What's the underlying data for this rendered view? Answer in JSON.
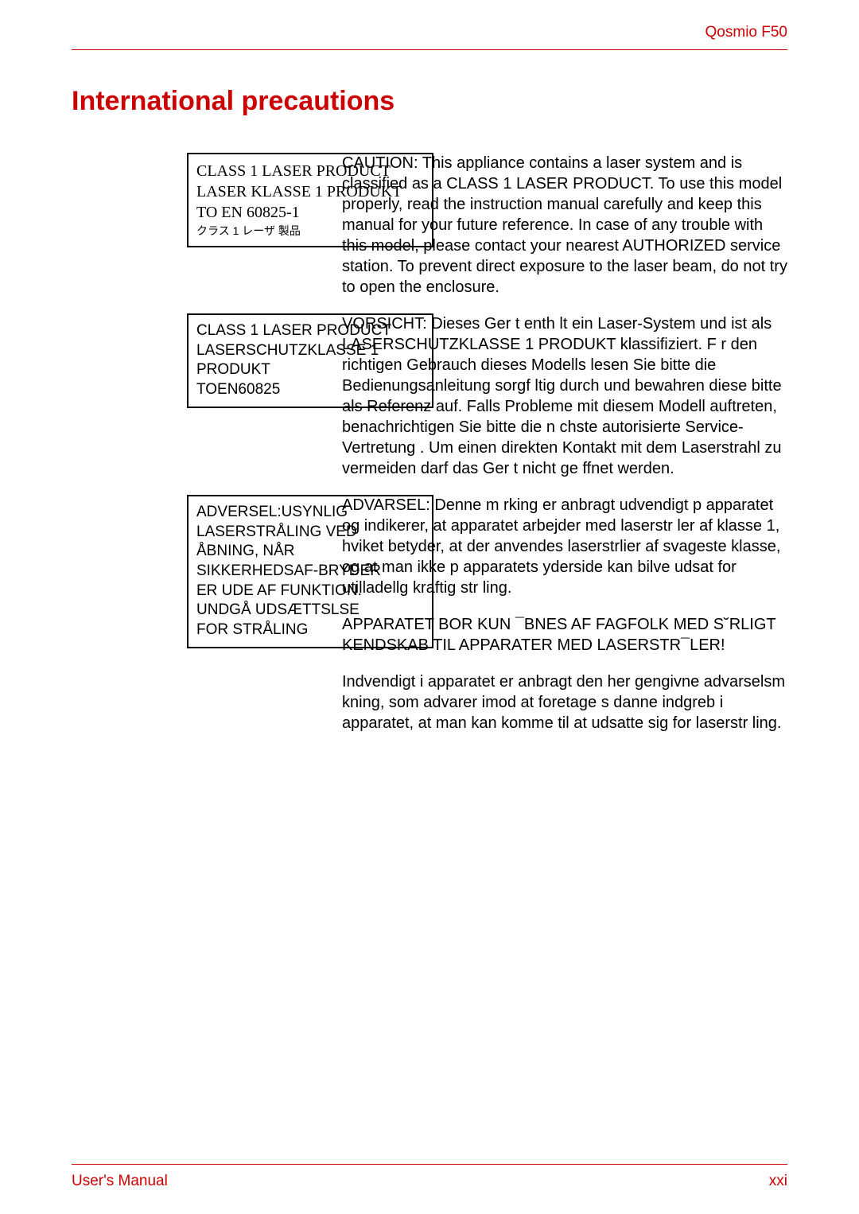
{
  "header": {
    "product": "Qosmio F50"
  },
  "title": "International precautions",
  "sections": [
    {
      "box": {
        "style": "serif",
        "lines": [
          "CLASS 1 LASER PRODUCT",
          "LASER KLASSE 1 PRODUKT",
          "TO EN 60825-1",
          "クラス 1 レーザ 製品"
        ]
      },
      "paragraphs": [
        "CAUTION: This appliance contains a laser system and is classified as a  CLASS 1 LASER PRODUCT.  To use this model properly, read the instruction manual carefully and keep this manual for your future reference. In case of any trouble with this model, please contact your nearest  AUTHORIZED service station.  To prevent direct exposure to the laser beam, do not try to open the enclosure."
      ]
    },
    {
      "box": {
        "style": "sans",
        "lines": [
          "CLASS 1 LASER PRODUCT",
          "LASERSCHUTZKLASSE 1",
          "PRODUKT",
          "TOEN60825"
        ]
      },
      "paragraphs": [
        "VORSICHT: Dieses Ger t enth lt ein Laser-System und ist als  LASERSCHUTZKLASSE 1 PRODUKT klassifiziert. F r den richtigen Gebrauch dieses Modells lesen Sie bitte die Bedienungsanleitung sorgf ltig durch und bewahren diese bitte als Referenz auf. Falls Probleme mit diesem Modell auftreten, benachrichtigen Sie bitte die n chste  autorisierte  Service-Vertretung . Um einen direkten Kontakt mit dem Laserstrahl zu vermeiden darf das Ger t nicht ge ffnet werden."
      ]
    },
    {
      "box": {
        "style": "sans",
        "lines": [
          "ADVERSEL:USYNLIG",
          "LASERSTRÅLING VED",
          "ÅBNING, NÅR",
          "SIKKERHEDSAF-BRYDER",
          "ER UDE AF FUNKTION.",
          "UNDGÅ UDSÆTTSLSE",
          "FOR STRÅLING"
        ]
      },
      "paragraphs": [
        "ADVARSEL:  Denne m rking er anbragt udvendigt p  apparatet og indikerer, at apparatet arbejder med laserstr ler af klasse 1, hviket betyder, at der anvendes laserstrlier af svageste klasse, og at man ikke p  apparatets yderside kan bilve udsat for utilladellg kraftig str ling.",
        "APPARATET BOR KUN ¯BNES AF FAGFOLK MED S˘RLIGT KENDSKAB TIL APPARATER MED LASERSTR¯LER!",
        "Indvendigt i apparatet er anbragt den her gengivne advarselsm kning, som advarer imod at foretage s danne indgreb i apparatet, at man kan komme til at udsatte sig for laserstr ling."
      ]
    }
  ],
  "footer": {
    "left": "User's Manual",
    "right": "xxi"
  },
  "colors": {
    "accent": "#cc0000",
    "text": "#000000",
    "background": "#ffffff"
  }
}
